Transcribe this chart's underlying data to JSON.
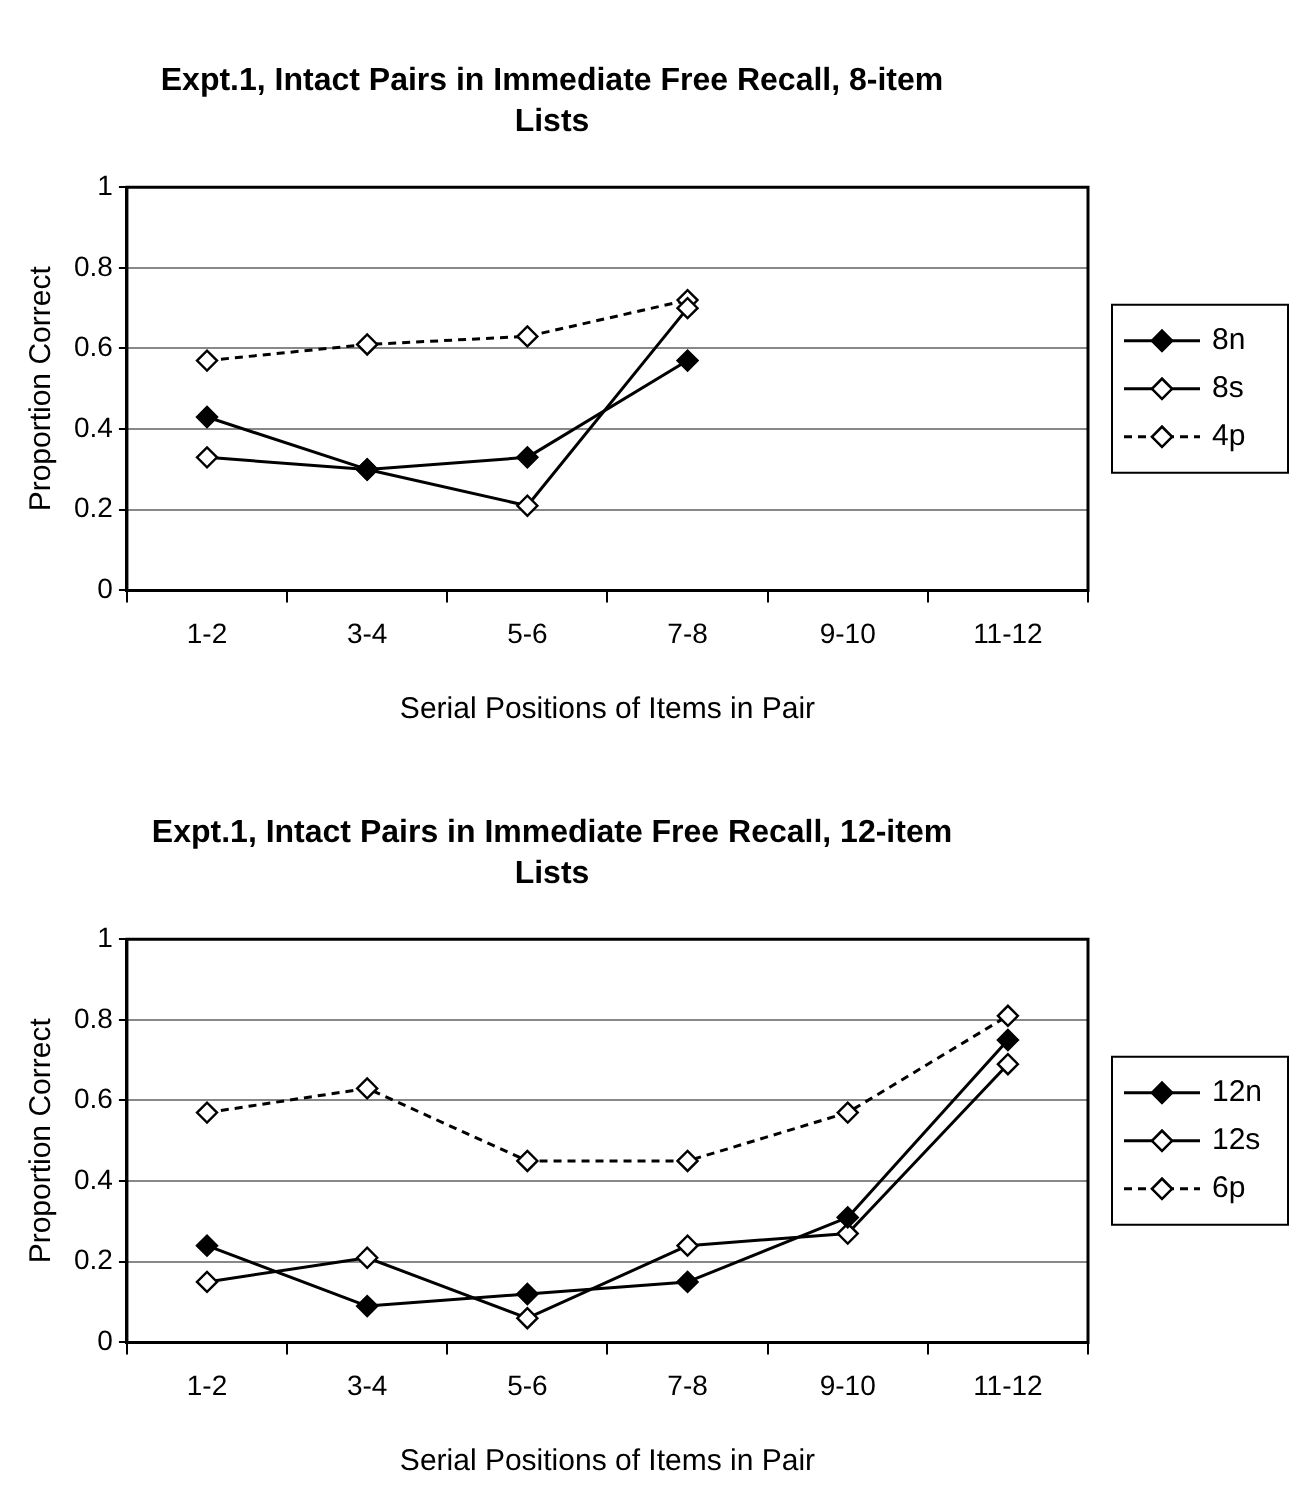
{
  "chart_data": [
    {
      "type": "line",
      "title": "Expt.1, Intact Pairs in Immediate Free Recall, 8-item Lists",
      "xlabel": "Serial Positions of Items in Pair",
      "ylabel": "Proportion Correct",
      "categories": [
        "1-2",
        "3-4",
        "5-6",
        "7-8",
        "9-10",
        "11-12"
      ],
      "series": [
        {
          "name": "8n",
          "color": "#000000",
          "values": [
            0.43,
            0.3,
            0.33,
            0.57,
            null,
            null
          ]
        },
        {
          "name": "8s",
          "color": "#000000",
          "values": [
            0.33,
            0.3,
            0.21,
            0.7,
            null,
            null
          ]
        },
        {
          "name": "4p",
          "color": "#000000",
          "line_style": "dashed",
          "values": [
            0.57,
            0.61,
            0.63,
            0.72,
            null,
            null
          ]
        }
      ],
      "ylim": [
        0,
        1
      ],
      "yticks": [
        0,
        0.2,
        0.4,
        0.6,
        0.8,
        1
      ],
      "grid": "y",
      "legend": "right",
      "marker": "diamond"
    },
    {
      "type": "line",
      "title": "Expt.1, Intact Pairs in Immediate Free Recall, 12-item Lists",
      "xlabel": "Serial Positions of Items in Pair",
      "ylabel": "Proportion Correct",
      "categories": [
        "1-2",
        "3-4",
        "5-6",
        "7-8",
        "9-10",
        "11-12"
      ],
      "series": [
        {
          "name": "12n",
          "color": "#000000",
          "values": [
            0.24,
            0.09,
            0.12,
            0.15,
            0.31,
            0.75
          ]
        },
        {
          "name": "12s",
          "color": "#000000",
          "values": [
            0.15,
            0.21,
            0.06,
            0.24,
            0.27,
            0.69
          ]
        },
        {
          "name": "6p",
          "color": "#000000",
          "line_style": "dashed",
          "values": [
            0.57,
            0.63,
            0.45,
            0.45,
            0.57,
            0.81
          ]
        }
      ],
      "ylim": [
        0,
        1
      ],
      "yticks": [
        0,
        0.2,
        0.4,
        0.6,
        0.8,
        1
      ],
      "grid": "y",
      "legend": "right",
      "marker": "diamond"
    }
  ]
}
